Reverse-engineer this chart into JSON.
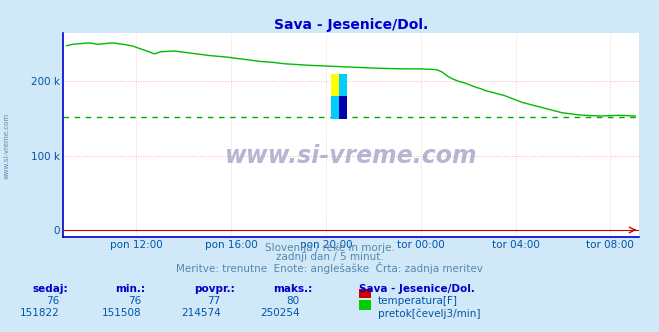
{
  "title": "Sava - Jesenice/Dol.",
  "title_color": "#0000cc",
  "bg_color": "#d0e8f8",
  "plot_bg_color": "#ffffff",
  "grid_color_h": "#ffaaaa",
  "grid_color_v": "#ffcccc",
  "avg_line_color": "#00aa00",
  "tick_color": "#0055aa",
  "x_tick_labels": [
    "pon 12:00",
    "pon 16:00",
    "pon 20:00",
    "tor 00:00",
    "tor 04:00",
    "tor 08:00"
  ],
  "x_tick_fracs": [
    0.125,
    0.292,
    0.458,
    0.625,
    0.792,
    0.958
  ],
  "ymax": 265000,
  "ymin": -10000,
  "watermark": "www.si-vreme.com",
  "watermark_color": "#aaaacc",
  "footer_line1": "Slovenija / reke in morje.",
  "footer_line2": "zadnji dan / 5 minut.",
  "footer_line3": "Meritve: trenutne  Enote: anglešaške  Črta: zadnja meritev",
  "footer_color": "#5588aa",
  "table_headers": [
    "sedaj:",
    "min.:",
    "povpr.:",
    "maks.:"
  ],
  "table_header_color": "#0000cc",
  "table_values_temp": [
    "76",
    "76",
    "77",
    "80"
  ],
  "table_values_flow": [
    "151822",
    "151508",
    "214574",
    "250254"
  ],
  "table_value_color": "#0055aa",
  "station_label": "Sava - Jesenice/Dol.",
  "temp_label": "temperatura[F]",
  "flow_label": "pretok[čevelj3/min]",
  "temp_color": "#cc0000",
  "flow_color": "#00cc00",
  "avg_value": 151508,
  "n_points": 288,
  "line_color": "#00bb00",
  "line_width": 1.0,
  "spine_color": "#0000cc",
  "arrow_color": "#cc0000",
  "left_label": "www.si-vreme.com",
  "left_label_color": "#6688aa"
}
